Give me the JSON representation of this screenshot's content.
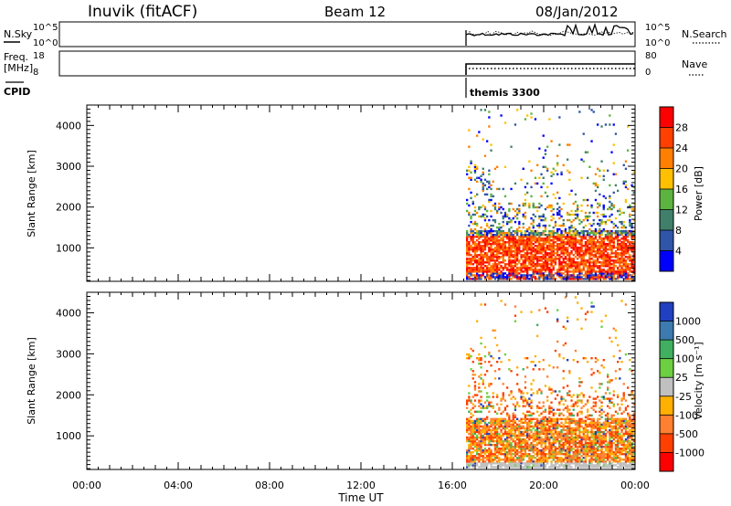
{
  "header": {
    "station": "Inuvik (fitACF)",
    "beam": "Beam 12",
    "date": "08/Jan/2012"
  },
  "noise_panel": {
    "left_label": "N.Sky",
    "right_label": "N.Search",
    "left_ticks": [
      "10^5",
      "10^0"
    ],
    "right_ticks": [
      "10^5",
      "10^0"
    ]
  },
  "freq_panel": {
    "left_label_1": "Freq.",
    "left_label_2": "[MHz]",
    "right_label": "Nave",
    "left_ticks": [
      "18",
      "8"
    ],
    "right_ticks": [
      "80",
      "0"
    ]
  },
  "cpid": {
    "label": "CPID",
    "program": "themis 3300",
    "start_hour": 16.6
  },
  "chart_data": [
    {
      "type": "heatmap",
      "name": "power",
      "xlabel": "",
      "ylabel": "Slant Range [km]",
      "xlim": [
        0,
        24
      ],
      "ylim": [
        180,
        4500
      ],
      "x_ticks": [
        "00:00",
        "04:00",
        "08:00",
        "12:00",
        "16:00",
        "20:00",
        "00:00"
      ],
      "y_ticks": [
        1000,
        2000,
        3000,
        4000
      ],
      "colorbar": {
        "label": "Power [dB]",
        "ticks": [
          "28",
          "24",
          "20",
          "16",
          "12",
          "8",
          "4"
        ],
        "colors": [
          "#ff0000",
          "#ff4000",
          "#ff7f00",
          "#ffc000",
          "#5db33f",
          "#40806a",
          "#2f55a8",
          "#0000ff"
        ]
      },
      "data_start_hour": 16.6
    },
    {
      "type": "heatmap",
      "name": "velocity",
      "xlabel": "Time UT",
      "ylabel": "Slant Range [km]",
      "xlim": [
        0,
        24
      ],
      "ylim": [
        180,
        4500
      ],
      "x_ticks": [
        "00:00",
        "04:00",
        "08:00",
        "12:00",
        "16:00",
        "20:00",
        "00:00"
      ],
      "y_ticks": [
        1000,
        2000,
        3000,
        4000
      ],
      "colorbar": {
        "label": "Velocity [m s⁻¹]",
        "ticks": [
          "1000",
          "500",
          "100",
          "25",
          "-25",
          "-100",
          "-500",
          "-1000"
        ],
        "colors": [
          "#2040c0",
          "#3d7ab0",
          "#40b060",
          "#6cd040",
          "#c0c0c0",
          "#ffb000",
          "#ff8030",
          "#ff4000",
          "#ff0000"
        ]
      },
      "data_start_hour": 16.6
    }
  ]
}
